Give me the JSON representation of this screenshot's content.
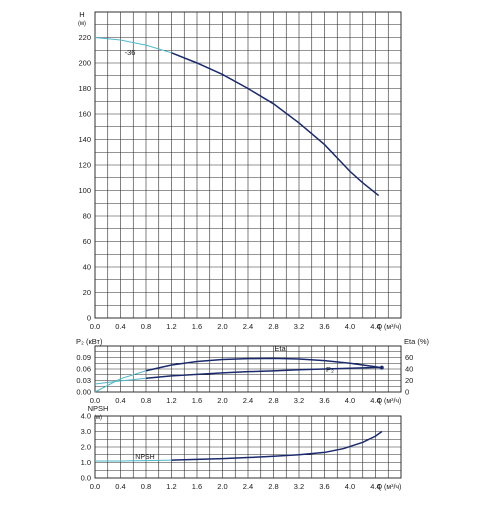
{
  "colors": {
    "curve": "#1a2a6c",
    "low_flow": "#4fb8c8",
    "grid": "#2b2b2b",
    "text": "#1a1a1a"
  },
  "chart_data": [
    {
      "id": "head",
      "type": "line",
      "xlabel": "Q (м³/ч)",
      "ylabel": "H",
      "ylabel_unit": "(м)",
      "xlim": [
        0,
        4.8
      ],
      "ylim": [
        0,
        240
      ],
      "xticks": [
        "0.0",
        "0.4",
        "0.8",
        "1.2",
        "1.6",
        "2.0",
        "2.4",
        "2.8",
        "3.2",
        "3.6",
        "4.0",
        "4.4"
      ],
      "yticks": [
        "0",
        "20",
        "40",
        "60",
        "80",
        "100",
        "120",
        "140",
        "160",
        "180",
        "200",
        "220"
      ],
      "series": [
        {
          "name": "-36",
          "x": [
            0,
            0.4,
            0.8,
            1.2,
            1.6,
            2.0,
            2.4,
            2.8,
            3.2,
            3.6,
            4.0,
            4.2,
            4.45
          ],
          "y": [
            220,
            218,
            214,
            208,
            200,
            191,
            180,
            168,
            153,
            136,
            115,
            106,
            96
          ]
        }
      ],
      "annotations": [
        "-36"
      ]
    },
    {
      "id": "power-efficiency",
      "type": "line",
      "xlabel": "Q (м³/ч)",
      "ylabel_left": "P₂ (кВт)",
      "ylabel_right": "Eta (%)",
      "xlim": [
        0,
        4.8
      ],
      "ylim_left": [
        0,
        0.12
      ],
      "ylim_right": [
        0,
        80
      ],
      "xticks": [
        "0.0",
        "0.4",
        "0.8",
        "1.2",
        "1.6",
        "2.0",
        "2.4",
        "2.8",
        "3.2",
        "3.6",
        "4.0",
        "4.4"
      ],
      "yticks_left": [
        "0.00",
        "0.03",
        "0.06",
        "0.09"
      ],
      "yticks_right": [
        "0",
        "20",
        "40",
        "60"
      ],
      "series": [
        {
          "name": "Eta",
          "axis": "right",
          "x": [
            0,
            0.4,
            0.8,
            1.2,
            1.6,
            2.0,
            2.4,
            2.8,
            3.2,
            3.6,
            4.0,
            4.4,
            4.5
          ],
          "y": [
            0,
            23,
            37,
            47,
            53,
            56.5,
            58,
            58.5,
            57.5,
            54.5,
            50,
            44,
            42
          ]
        },
        {
          "name": "P₂",
          "axis": "left",
          "x": [
            0,
            0.4,
            0.8,
            1.2,
            1.6,
            2.0,
            2.4,
            2.8,
            3.2,
            3.6,
            4.0,
            4.4,
            4.5
          ],
          "y": [
            0.021,
            0.029,
            0.036,
            0.042,
            0.046,
            0.05,
            0.053,
            0.055,
            0.058,
            0.06,
            0.062,
            0.064,
            0.064
          ]
        }
      ],
      "annotations": [
        "Eta",
        "P₂"
      ]
    },
    {
      "id": "npsh",
      "type": "line",
      "xlabel": "Q (м³/ч)",
      "ylabel": "NPSH",
      "ylabel_unit": "(м)",
      "xlim": [
        0,
        4.8
      ],
      "ylim": [
        0,
        4.0
      ],
      "xticks": [
        "0.0",
        "0.4",
        "0.8",
        "1.2",
        "1.6",
        "2.0",
        "2.4",
        "2.8",
        "3.2",
        "3.6",
        "4.0",
        "4.4"
      ],
      "yticks": [
        "0.0",
        "1.0",
        "2.0",
        "3.0",
        "4.0"
      ],
      "series": [
        {
          "name": "NPSH",
          "x": [
            0,
            0.4,
            0.8,
            1.2,
            1.6,
            2.0,
            2.4,
            2.8,
            3.2,
            3.6,
            3.9,
            4.2,
            4.4,
            4.5
          ],
          "y": [
            1.1,
            1.1,
            1.12,
            1.15,
            1.2,
            1.25,
            1.32,
            1.4,
            1.5,
            1.65,
            1.9,
            2.3,
            2.7,
            3.0
          ]
        }
      ],
      "annotations": [
        "NPSH"
      ]
    }
  ]
}
